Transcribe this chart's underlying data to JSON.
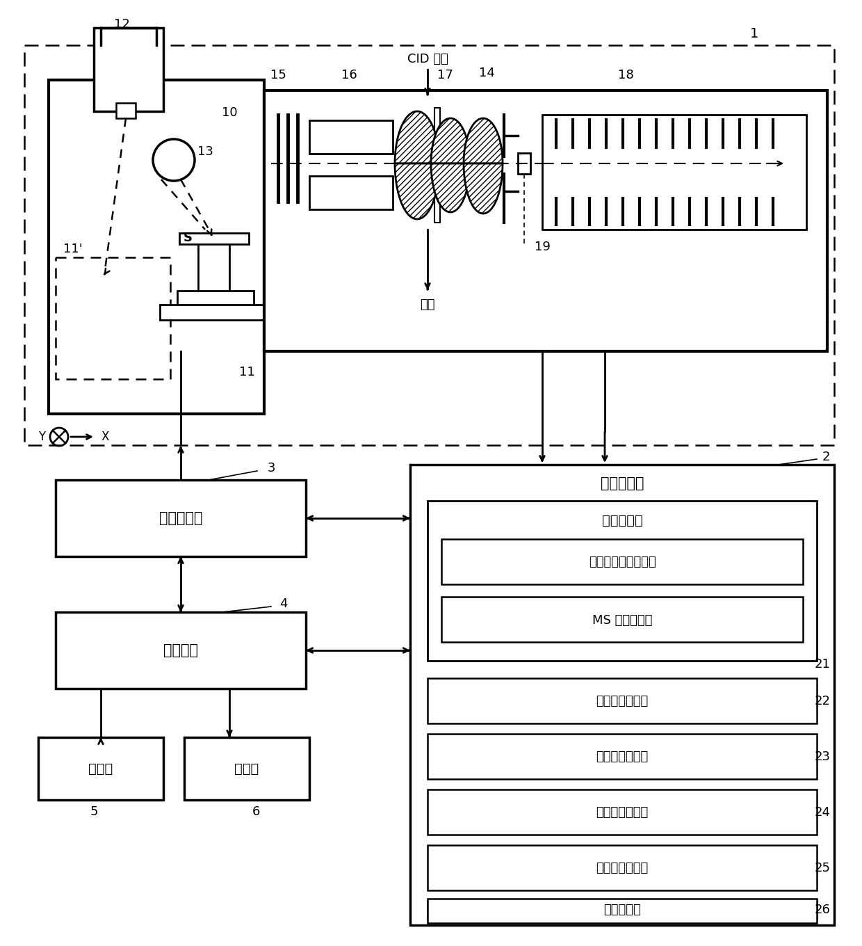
{
  "bg_color": "#ffffff",
  "labels": {
    "cid_gas": "CID 气体",
    "exhaust": "排气",
    "analysis_ctrl": "分析控制部",
    "data_proc": "数据处理部",
    "data_store": "数据存储部",
    "optical_store": "光学图像数据存储部",
    "ms_store": "MS 数据存储部",
    "imaging": "成像图像制作部",
    "optical_form": "光学图像形成部",
    "param_adj": "图像参数调整部",
    "img_overlay": "图像叠加处理部",
    "display_proc": "显示处理部",
    "main_ctrl": "主控制部",
    "input": "输入部",
    "display": "显示部"
  },
  "numbers": {
    "n1": "1",
    "n2": "2",
    "n3": "3",
    "n4": "4",
    "n5": "5",
    "n6": "6",
    "n10": "10",
    "n11": "11",
    "n11p": "11'",
    "n12": "12",
    "n13": "13",
    "n14": "14",
    "n15": "15",
    "n16": "16",
    "n17": "17",
    "n18": "18",
    "n19": "19",
    "n21": "21",
    "n22": "22",
    "n23": "23",
    "n24": "24",
    "n25": "25",
    "n26": "26"
  }
}
